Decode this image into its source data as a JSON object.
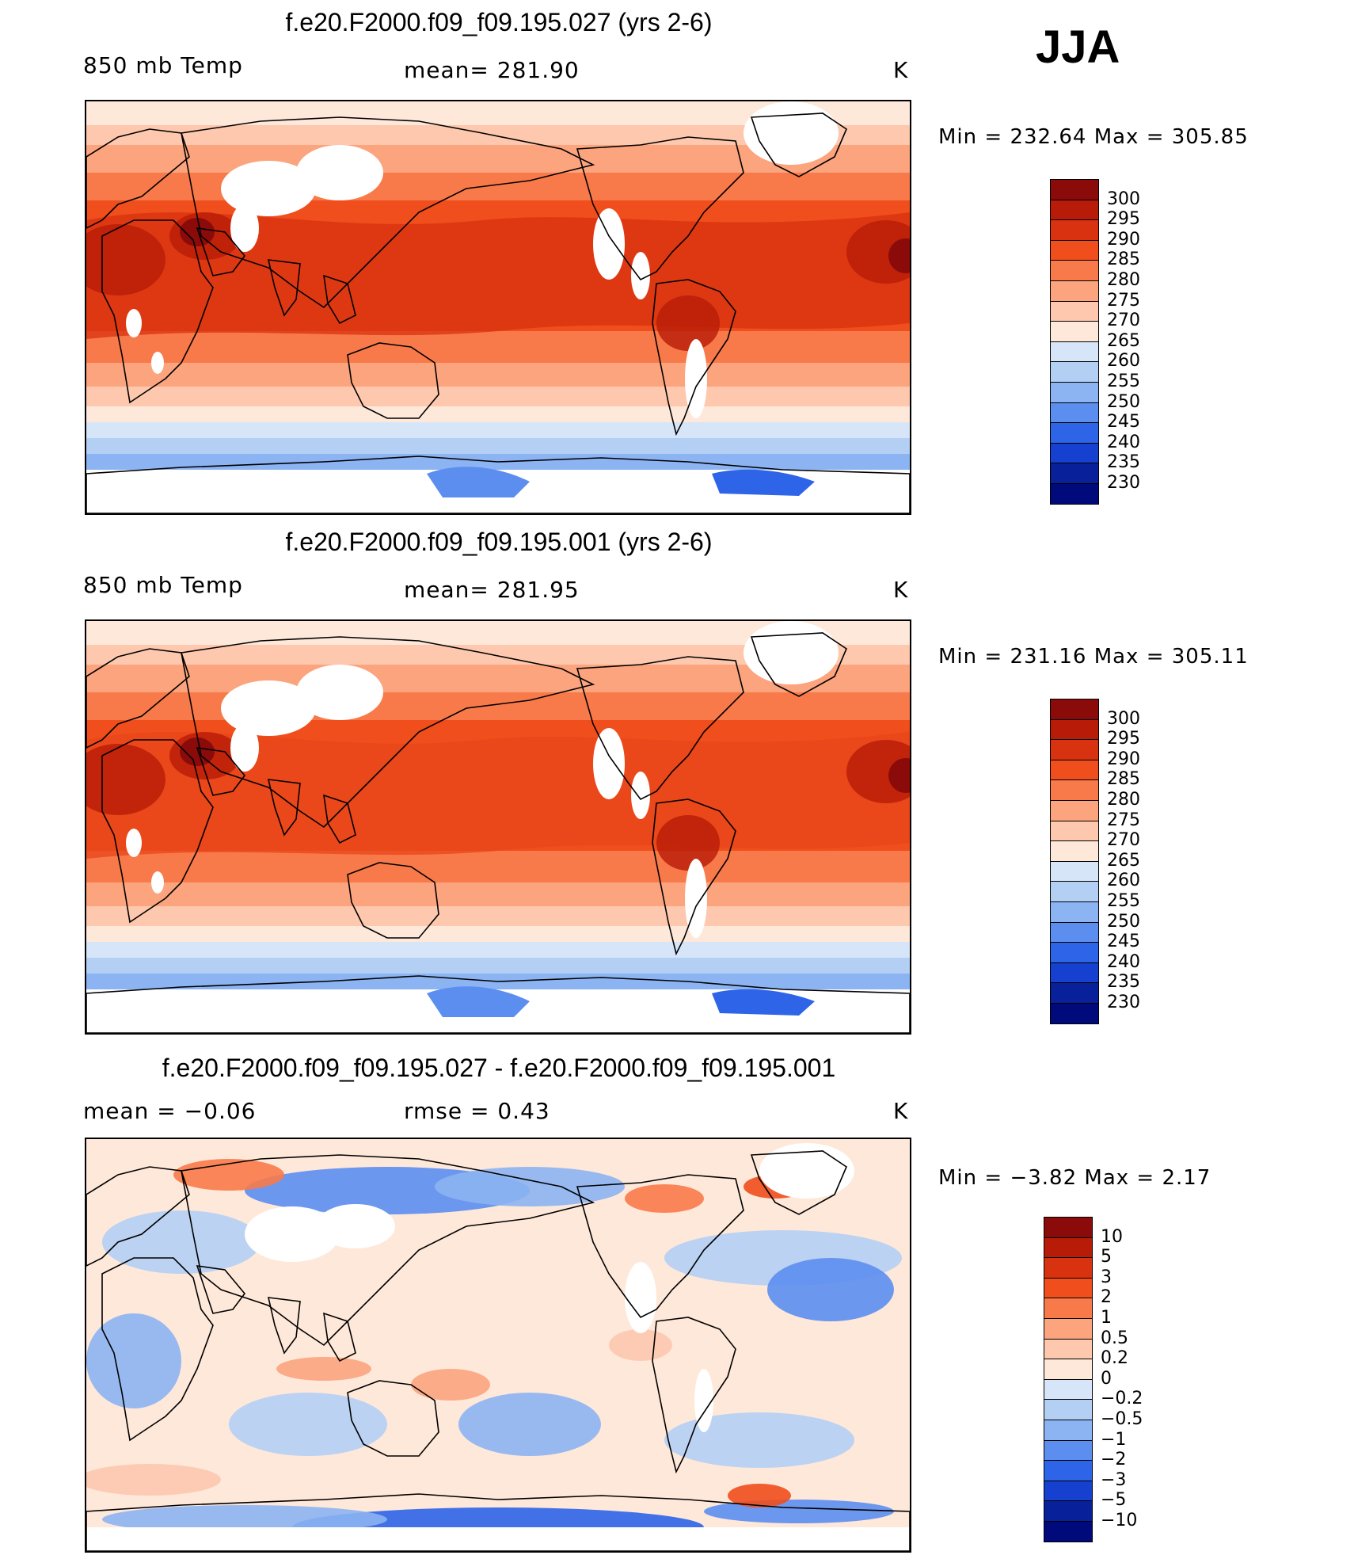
{
  "season": "JJA",
  "panels": [
    {
      "title": "f.e20.F2000.f09_f09.195.027 (yrs 2-6)",
      "left_label": "850 mb Temp",
      "center_label": "mean= 281.90",
      "units": "K",
      "minmax": "Min  =  232.64  Max  =  305.85",
      "type": "abs"
    },
    {
      "title": "f.e20.F2000.f09_f09.195.001 (yrs 2-6)",
      "left_label": "850 mb Temp",
      "center_label": "mean= 281.95",
      "units": "K",
      "minmax": "Min  =  231.16  Max  =  305.11",
      "type": "abs"
    },
    {
      "title": "f.e20.F2000.f09_f09.195.027 - f.e20.F2000.f09_f09.195.001",
      "left_label": "mean =    −0.06",
      "center_label": "rmse =     0.43",
      "units": "K",
      "minmax": "Min  =    −3.82  Max  =      2.17",
      "type": "diff"
    }
  ],
  "legend_abs": {
    "labels": [
      "300",
      "295",
      "290",
      "285",
      "280",
      "275",
      "270",
      "265",
      "260",
      "255",
      "250",
      "245",
      "240",
      "235",
      "230"
    ],
    "colors": [
      "#8b0a0a",
      "#b81c08",
      "#d83210",
      "#f04e1c",
      "#f87a4a",
      "#fba47e",
      "#fdc8ae",
      "#fee8da",
      "#d6e6f8",
      "#b4cff4",
      "#8cb4f2",
      "#5c8ef0",
      "#2e64e8",
      "#1640d0",
      "#08209a",
      "#000a7a"
    ]
  },
  "legend_diff": {
    "labels": [
      "10",
      "5",
      "3",
      "2",
      "1",
      "0.5",
      "0.2",
      "0",
      "−0.2",
      "−0.5",
      "−1",
      "−2",
      "−3",
      "−5",
      "−10"
    ],
    "colors": [
      "#8b0a0a",
      "#b81c08",
      "#d83210",
      "#f04e1c",
      "#f87a4a",
      "#fba47e",
      "#fdc8ae",
      "#fee8da",
      "#d6e6f8",
      "#b4cff4",
      "#8cb4f2",
      "#5c8ef0",
      "#2e64e8",
      "#1640d0",
      "#08209a",
      "#000a7a"
    ]
  },
  "colors": {
    "land_coast": "#000000",
    "missing": "#ffffff"
  }
}
